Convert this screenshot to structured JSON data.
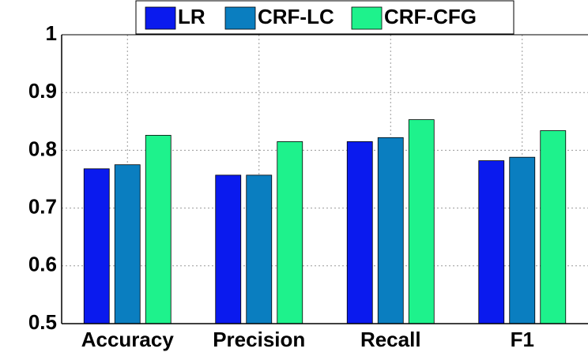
{
  "chart_data": {
    "type": "bar",
    "categories": [
      "Accuracy",
      "Precision",
      "Recall",
      "F1"
    ],
    "series": [
      {
        "name": "LR",
        "color": "#0a1aee",
        "values": [
          0.768,
          0.757,
          0.815,
          0.782
        ]
      },
      {
        "name": "CRF-LC",
        "color": "#0a7ec0",
        "values": [
          0.775,
          0.757,
          0.822,
          0.788
        ]
      },
      {
        "name": "CRF-CFG",
        "color": "#1ef28c",
        "values": [
          0.826,
          0.815,
          0.853,
          0.834
        ]
      }
    ],
    "ylim": [
      0.5,
      1
    ],
    "yticks": [
      0.5,
      0.6,
      0.7,
      0.8,
      0.9,
      1
    ],
    "grid": true,
    "legend": "top"
  }
}
